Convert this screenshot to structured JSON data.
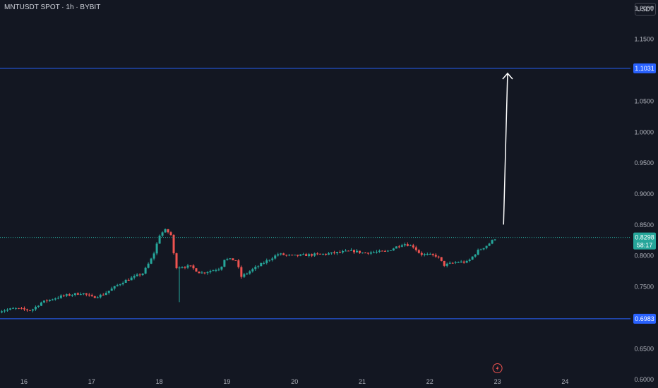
{
  "header": {
    "title": "MNTUSDT SPOT · 1h · BYBIT",
    "unit_button": "USDT"
  },
  "colors": {
    "background": "#131722",
    "up": "#26a69a",
    "down": "#ef5350",
    "level_line": "#2962ff",
    "current_price": "#26a69a",
    "axis_text": "#b2b5be",
    "arrow": "#ffffff"
  },
  "chart_data": {
    "type": "candlestick",
    "symbol": "MNTUSDT",
    "interval": "1h",
    "exchange": "BYBIT",
    "y_axis_ticks": [
      "1.2000",
      "1.1500",
      "1.0500",
      "1.0000",
      "0.9500",
      "0.9000",
      "0.8500",
      "0.8000",
      "0.7500",
      "0.6500",
      "0.6000"
    ],
    "x_axis_ticks": [
      "16",
      "17",
      "18",
      "19",
      "20",
      "21",
      "22",
      "23",
      "24"
    ],
    "ylim": [
      0.5865,
      1.2135
    ],
    "xlim": [
      15.63,
      24.72
    ],
    "horizontal_levels": [
      {
        "price": 1.1031,
        "label": "1.1031"
      },
      {
        "price": 0.6983,
        "label": "0.6983"
      }
    ],
    "current_price": {
      "value": 0.8298,
      "label": "0.8298",
      "countdown": "58:17"
    },
    "projection_arrow": {
      "from_day": 23.09,
      "from_price": 0.8506,
      "to_day": 23.15,
      "to_price": 1.095
    },
    "price_path": [
      {
        "day": 15.63,
        "price": 0.71
      },
      {
        "day": 15.9,
        "price": 0.715
      },
      {
        "day": 16.15,
        "price": 0.712
      },
      {
        "day": 16.3,
        "price": 0.725
      },
      {
        "day": 16.6,
        "price": 0.735
      },
      {
        "day": 16.9,
        "price": 0.74
      },
      {
        "day": 17.05,
        "price": 0.733
      },
      {
        "day": 17.2,
        "price": 0.737
      },
      {
        "day": 17.5,
        "price": 0.758
      },
      {
        "day": 17.8,
        "price": 0.772
      },
      {
        "day": 17.95,
        "price": 0.8
      },
      {
        "day": 18.05,
        "price": 0.835
      },
      {
        "day": 18.14,
        "price": 0.842
      },
      {
        "day": 18.22,
        "price": 0.833
      },
      {
        "day": 18.28,
        "price": 0.782
      },
      {
        "day": 18.5,
        "price": 0.783
      },
      {
        "day": 18.65,
        "price": 0.772
      },
      {
        "day": 18.95,
        "price": 0.78
      },
      {
        "day": 19.0,
        "price": 0.795
      },
      {
        "day": 19.18,
        "price": 0.793
      },
      {
        "day": 19.25,
        "price": 0.766
      },
      {
        "day": 19.45,
        "price": 0.78
      },
      {
        "day": 19.8,
        "price": 0.803
      },
      {
        "day": 20.0,
        "price": 0.8
      },
      {
        "day": 20.5,
        "price": 0.803
      },
      {
        "day": 20.9,
        "price": 0.808
      },
      {
        "day": 21.05,
        "price": 0.805
      },
      {
        "day": 21.4,
        "price": 0.807
      },
      {
        "day": 21.65,
        "price": 0.82
      },
      {
        "day": 21.8,
        "price": 0.815
      },
      {
        "day": 21.9,
        "price": 0.803
      },
      {
        "day": 22.15,
        "price": 0.8
      },
      {
        "day": 22.25,
        "price": 0.785
      },
      {
        "day": 22.45,
        "price": 0.79
      },
      {
        "day": 22.6,
        "price": 0.79
      },
      {
        "day": 22.75,
        "price": 0.808
      },
      {
        "day": 22.9,
        "price": 0.818
      },
      {
        "day": 23.0,
        "price": 0.828
      }
    ],
    "spike_low": {
      "day": 18.29,
      "price": 0.7252
    },
    "lightning_icon_day": 23.0
  }
}
